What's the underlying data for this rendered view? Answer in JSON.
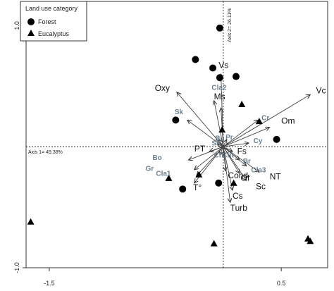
{
  "chart_data": {
    "type": "scatter",
    "xlim": [
      -1.7,
      0.9
    ],
    "ylim": [
      -1.0,
      1.2
    ],
    "x_ticks": [
      -1.5,
      0.5
    ],
    "x_tick_labels": [
      "-1.5",
      "0.5"
    ],
    "y_ticks": [
      1.0,
      -1.0
    ],
    "y_tick_labels": [
      "1.0",
      "-1.0"
    ],
    "axis1_label": "Axis 1= 49.38%",
    "axis2_label": "Axis 2= 26.11%",
    "grid": false,
    "legend": {
      "title": "Land use category",
      "placement": "top-left",
      "entries": [
        {
          "label": "Forest",
          "marker": "circle"
        },
        {
          "label": "Eucalyptus",
          "marker": "triangle"
        }
      ]
    },
    "sites": [
      {
        "group": "Forest",
        "x": -0.03,
        "y": 0.98
      },
      {
        "group": "Forest",
        "x": -0.24,
        "y": 0.72
      },
      {
        "group": "Forest",
        "x": -0.09,
        "y": 0.65
      },
      {
        "group": "Forest",
        "x": -0.03,
        "y": 0.57
      },
      {
        "group": "Forest",
        "x": 0.11,
        "y": 0.58
      },
      {
        "group": "Forest",
        "x": -0.41,
        "y": 0.22
      },
      {
        "group": "Forest",
        "x": 0.46,
        "y": 0.06
      },
      {
        "group": "Forest",
        "x": -0.04,
        "y": -0.3
      },
      {
        "group": "Forest",
        "x": -0.35,
        "y": -0.35
      },
      {
        "group": "Eucalyptus",
        "x": 0.16,
        "y": 0.35
      },
      {
        "group": "Eucalyptus",
        "x": -0.01,
        "y": 0.14
      },
      {
        "group": "Eucalyptus",
        "x": 0.31,
        "y": 0.21
      },
      {
        "group": "Eucalyptus",
        "x": -0.47,
        "y": -0.26
      },
      {
        "group": "Eucalyptus",
        "x": -0.21,
        "y": -0.23
      },
      {
        "group": "Eucalyptus",
        "x": 0.09,
        "y": -0.3
      },
      {
        "group": "Eucalyptus",
        "x": -1.66,
        "y": -0.62
      },
      {
        "group": "Eucalyptus",
        "x": -0.08,
        "y": -0.8
      },
      {
        "group": "Eucalyptus",
        "x": 0.73,
        "y": -0.76
      },
      {
        "group": "Eucalyptus",
        "x": 0.75,
        "y": -0.78
      }
    ],
    "variables": [
      {
        "label": "Vc",
        "x": 0.75,
        "y": 0.43,
        "color": "#111111",
        "lx": 0.8,
        "ly": 0.44
      },
      {
        "label": "Om",
        "x": 0.4,
        "y": 0.16,
        "color": "#111111",
        "lx": 0.5,
        "ly": 0.19
      },
      {
        "label": "Vs",
        "x": -0.02,
        "y": 0.6,
        "color": "#111111",
        "lx": -0.04,
        "ly": 0.65
      },
      {
        "label": "Oxy",
        "x": -0.4,
        "y": 0.45,
        "color": "#111111",
        "lx": -0.59,
        "ly": 0.46
      },
      {
        "label": "Ms",
        "x": -0.02,
        "y": 0.32,
        "color": "#111111",
        "lx": -0.08,
        "ly": 0.39
      },
      {
        "label": "PT",
        "x": -0.12,
        "y": -0.04,
        "color": "#111111",
        "lx": -0.25,
        "ly": -0.04
      },
      {
        "label": "Fs",
        "x": 0.08,
        "y": -0.04,
        "color": "#111111",
        "lx": 0.12,
        "ly": -0.06
      },
      {
        "label": "T°",
        "x": -0.25,
        "y": -0.3,
        "color": "#111111",
        "lx": -0.26,
        "ly": -0.36
      },
      {
        "label": "Cond",
        "x": 0.02,
        "y": -0.2,
        "color": "#111111",
        "lx": 0.04,
        "ly": -0.26
      },
      {
        "label": "Of",
        "x": 0.14,
        "y": -0.22,
        "color": "#111111",
        "lx": 0.15,
        "ly": -0.28
      },
      {
        "label": "NT",
        "x": 0.31,
        "y": -0.21,
        "color": "#111111",
        "lx": 0.4,
        "ly": -0.27
      },
      {
        "label": "Sc",
        "x": 0.2,
        "y": -0.28,
        "color": "#111111",
        "lx": 0.28,
        "ly": -0.35
      },
      {
        "label": "Cs",
        "x": 0.08,
        "y": -0.36,
        "color": "#111111",
        "lx": 0.08,
        "ly": -0.43
      },
      {
        "label": "Turb",
        "x": 0.06,
        "y": -0.46,
        "color": "#111111",
        "lx": 0.06,
        "ly": -0.53
      },
      {
        "label": "Cla2",
        "x": -0.08,
        "y": 0.38,
        "color": "#6e7f8c",
        "lx": -0.1,
        "ly": 0.47
      },
      {
        "label": "Sk",
        "x": -0.31,
        "y": 0.22,
        "color": "#6e7f8c",
        "lx": -0.42,
        "ly": 0.27
      },
      {
        "label": "Cr",
        "x": 0.3,
        "y": 0.22,
        "color": "#6e7f8c",
        "lx": 0.33,
        "ly": 0.22
      },
      {
        "label": "Cy",
        "x": 0.22,
        "y": 0.03,
        "color": "#6e7f8c",
        "lx": 0.26,
        "ly": 0.03
      },
      {
        "label": "Br",
        "x": 0.14,
        "y": -0.11,
        "color": "#6e7f8c",
        "lx": 0.17,
        "ly": -0.14
      },
      {
        "label": "Cla3",
        "x": 0.2,
        "y": -0.16,
        "color": "#6e7f8c",
        "lx": 0.24,
        "ly": -0.21
      },
      {
        "label": "Bo",
        "x": -0.3,
        "y": -0.11,
        "color": "#6e7f8c",
        "lx": -0.61,
        "ly": -0.11
      },
      {
        "label": "Gr",
        "x": -0.25,
        "y": -0.19,
        "color": "#6e7f8c",
        "lx": -0.67,
        "ly": -0.2
      },
      {
        "label": "Cla1",
        "x": -0.23,
        "y": -0.24,
        "color": "#6e7f8c",
        "lx": -0.58,
        "ly": -0.24
      },
      {
        "label": "Bu",
        "x": -0.04,
        "y": 0.06,
        "color": "#6e7f8c",
        "lx": -0.07,
        "ly": 0.05
      },
      {
        "label": "Pr",
        "x": 0.03,
        "y": 0.06,
        "color": "#6e7f8c",
        "lx": 0.02,
        "ly": 0.06
      },
      {
        "label": "Sh",
        "x": -0.05,
        "y": 0.02,
        "color": "#6e7f8c",
        "lx": -0.1,
        "ly": 0.01
      },
      {
        "label": "Ch",
        "x": -0.03,
        "y": -0.07,
        "color": "#6e7f8c",
        "lx": -0.08,
        "ly": -0.09
      },
      {
        "label": "Cht",
        "x": 0.0,
        "y": -0.08,
        "color": "#6e7f8c",
        "lx": -0.01,
        "ly": -0.09
      }
    ]
  }
}
